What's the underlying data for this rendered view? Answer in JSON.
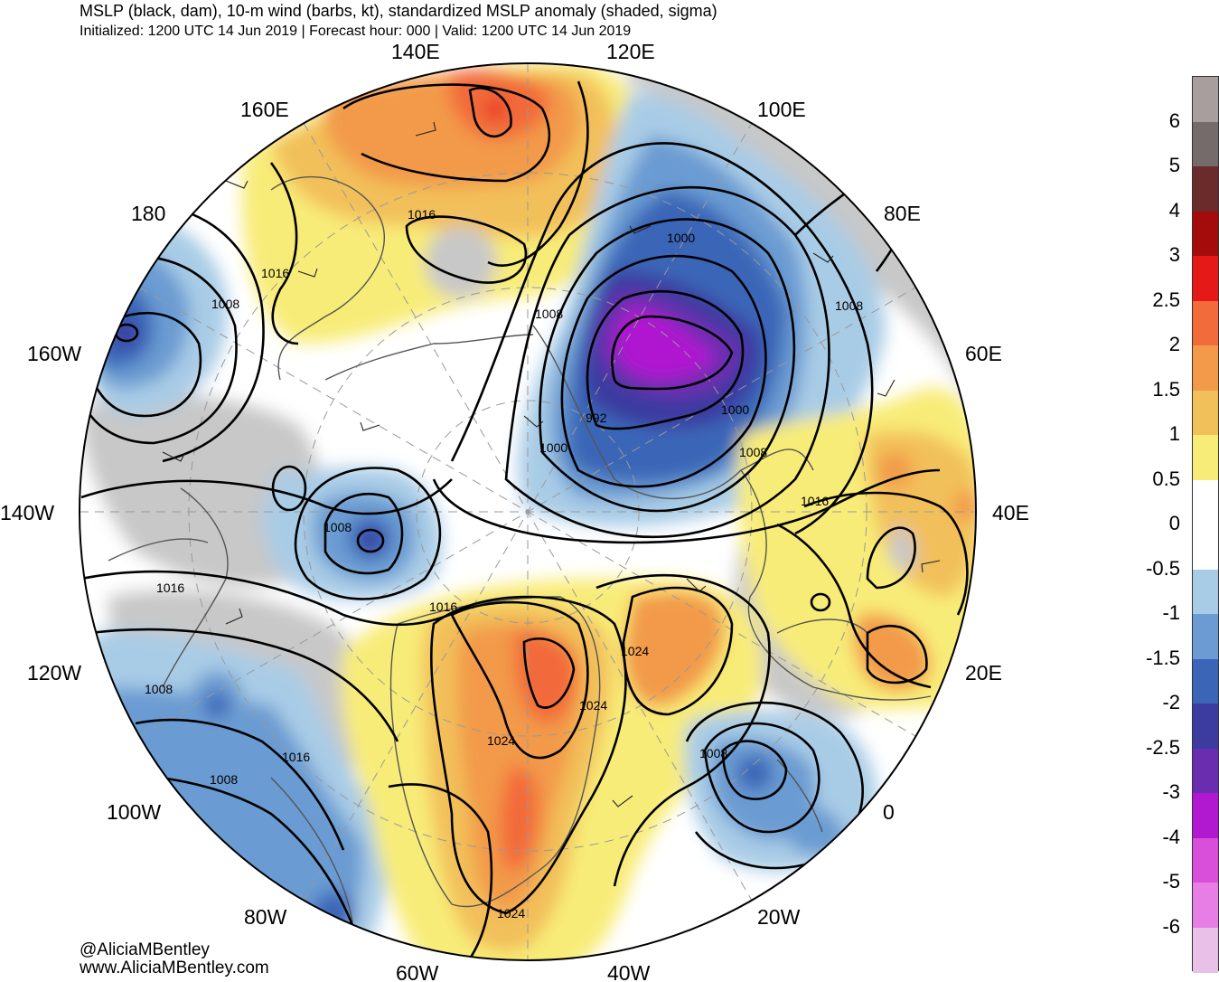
{
  "header": {
    "title": "MSLP (black, dam), 10-m wind (barbs, kt), standardized MSLP anomaly (shaded, sigma)",
    "subtitle": "Initialized: 1200 UTC 14 Jun 2019 | Forecast hour: 000 | Valid: 1200 UTC 14 Jun 2019"
  },
  "map": {
    "projection": "north polar stereographic",
    "longitude_labels": [
      "140E",
      "120E",
      "160E",
      "100E",
      "180",
      "80E",
      "160W",
      "60E",
      "140W",
      "40E",
      "120W",
      "20E",
      "100W",
      "0",
      "80W",
      "20W",
      "60W",
      "40W"
    ],
    "isobar_labels": [
      "1016",
      "1000",
      "1016",
      "1008",
      "1008",
      "992",
      "1000",
      "1000",
      "1008",
      "1008",
      "1016",
      "1008",
      "1016",
      "1016",
      "1024",
      "1024",
      "1008",
      "1024",
      "1008",
      "1016",
      "1008",
      "1024"
    ],
    "colors": {
      "land_gray": "#c8c8c8",
      "coastline": "#555555",
      "isobar": "#000000",
      "grid": "#999999"
    }
  },
  "colorbar": {
    "labels": [
      "6",
      "5",
      "4",
      "3",
      "2.5",
      "2",
      "1.5",
      "1",
      "0.5",
      "0",
      "-0.5",
      "-1",
      "-1.5",
      "-2",
      "-2.5",
      "-3",
      "-4",
      "-5",
      "-6"
    ],
    "colors": [
      "#a89e9e",
      "#756b6b",
      "#6b2b2b",
      "#a40b0b",
      "#e61919",
      "#f26b3a",
      "#f29a4a",
      "#f2c05a",
      "#f8ec78",
      "#ffffff",
      "#ffffff",
      "#a9cce6",
      "#6b9bd2",
      "#3b66b7",
      "#3b3ba0",
      "#6a2db0",
      "#b019d0",
      "#d94fd9",
      "#e67ee6",
      "#e8c0e8"
    ]
  },
  "credits": {
    "handle": "@AliciaMBentley",
    "website": "www.AliciaMBentley.com"
  }
}
